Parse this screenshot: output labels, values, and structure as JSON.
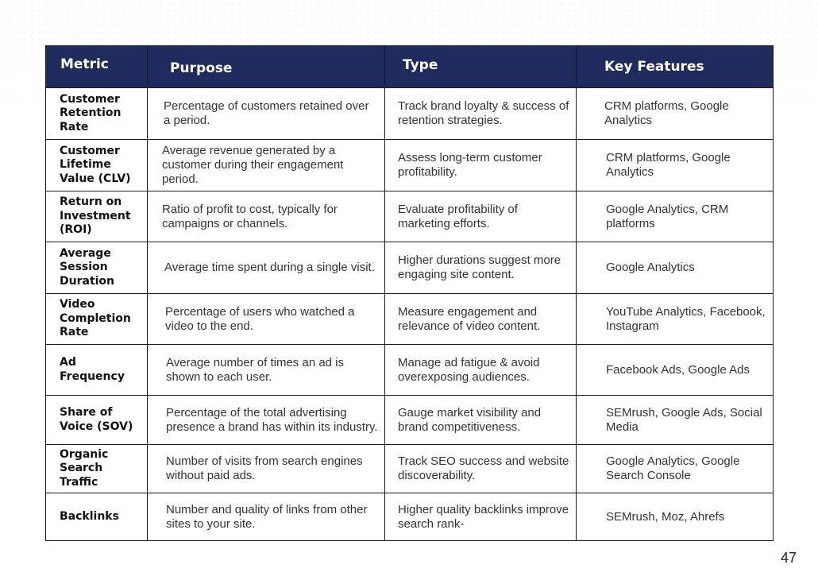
{
  "table": {
    "headers": {
      "metric": "Metric",
      "purpose": "Purpose",
      "type": "Type",
      "features": "Key Features"
    },
    "rows": [
      {
        "metric": "Customer Retention Rate",
        "purpose": "Percentage of customers retained over a period.",
        "type": "Track brand loyalty & success of retention strategies.",
        "features": "CRM platforms, Google Analytics"
      },
      {
        "metric": "Customer Lifetime Value (CLV)",
        "purpose": "Average revenue generated by a customer during their engagement period.",
        "type": "Assess long-term customer profitability.",
        "features": "CRM platforms, Google Analytics"
      },
      {
        "metric": "Return on Investment (ROI)",
        "purpose": "Ratio of profit to cost, typically for campaigns or channels.",
        "type": "Evaluate profitability of marketing efforts.",
        "features": "Google Analytics, CRM platforms"
      },
      {
        "metric": "Average Session Duration",
        "purpose": "Average time spent during a single visit.",
        "type": "Higher durations suggest more engaging site content.",
        "features": "Google Analytics"
      },
      {
        "metric": "Video Completion Rate",
        "purpose": "Percentage of users who watched a video to the end.",
        "type": "Measure engagement and relevance of video content.",
        "features": "YouTube Analytics, Facebook, Instagram"
      },
      {
        "metric": "Ad Frequency",
        "purpose": "Average number of times an ad is shown to each user.",
        "type": "Manage ad fatigue & avoid overexposing audiences.",
        "features": "Facebook Ads, Google Ads"
      },
      {
        "metric": "Share of Voice (SOV)",
        "purpose": "Percentage of the total advertising presence a brand has within its industry.",
        "type": "Gauge market visibility and brand competitiveness.",
        "features": "SEMrush, Google Ads, Social Media"
      },
      {
        "metric": "Organic Search Traffic",
        "purpose": "Number of visits from search engines without paid ads.",
        "type": "Track SEO success and website discoverability.",
        "features": "Google Analytics, Google Search Console"
      },
      {
        "metric": "Backlinks",
        "purpose": "Number and quality of links from other sites to your site.",
        "type": "Higher quality backlinks improve search rank-",
        "features": "SEMrush, Moz, Ahrefs"
      }
    ]
  },
  "page_number": "47",
  "colors": {
    "header_bg": "#1f2b5c",
    "header_text": "#ffffff",
    "border": "#1a1a1a"
  }
}
